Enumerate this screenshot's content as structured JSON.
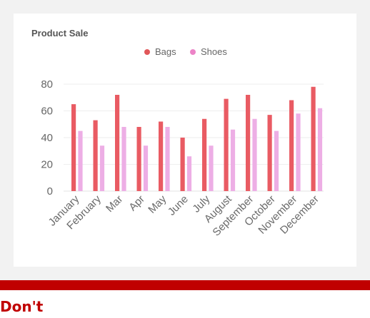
{
  "chart_data": {
    "type": "bar",
    "title": "Product Sale",
    "categories": [
      "January",
      "February",
      "Mar",
      "Apr",
      "May",
      "June",
      "July",
      "August",
      "September",
      "October",
      "November",
      "December"
    ],
    "series": [
      {
        "name": "Bags",
        "color": "#e95b63",
        "values": [
          65,
          53,
          72,
          48,
          52,
          40,
          54,
          69,
          72,
          57,
          68,
          78
        ]
      },
      {
        "name": "Shoes",
        "color": "#edaee5",
        "values": [
          45,
          34,
          48,
          34,
          48,
          26,
          34,
          46,
          54,
          45,
          58,
          62
        ]
      }
    ],
    "ylim": [
      0,
      80
    ],
    "yticks": [
      0,
      20,
      40,
      60,
      80
    ],
    "legend_position": "top-center",
    "grid": true,
    "xlabel": "",
    "ylabel": ""
  },
  "legend": {
    "bags_color": "#e15759",
    "shoes_color": "#ec83c7"
  },
  "footer": {
    "label": "Don't",
    "accent_color": "#c00000"
  }
}
